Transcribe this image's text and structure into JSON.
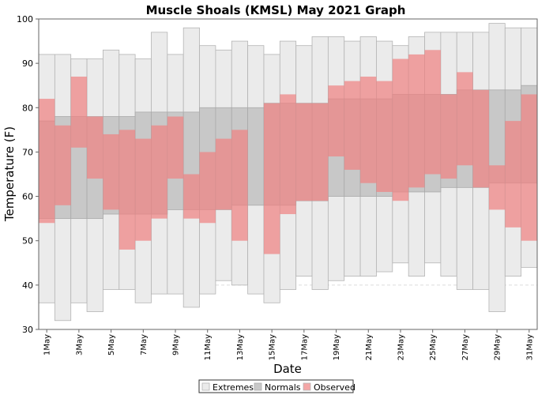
{
  "chart_data": {
    "type": "bar",
    "title": "Muscle Shoals (KMSL) May 2021 Graph",
    "xlabel": "Date",
    "ylabel": "Temperature (F)",
    "ylim": [
      30,
      100
    ],
    "yticks": [
      30,
      40,
      50,
      60,
      70,
      80,
      90,
      100
    ],
    "grid": true,
    "legend_position": "bottom-center",
    "categories": [
      "1May",
      "2May",
      "3May",
      "4May",
      "5May",
      "6May",
      "7May",
      "8May",
      "9May",
      "10May",
      "11May",
      "12May",
      "13May",
      "14May",
      "15May",
      "16May",
      "17May",
      "18May",
      "19May",
      "20May",
      "21May",
      "22May",
      "23May",
      "24May",
      "25May",
      "26May",
      "27May",
      "28May",
      "29May",
      "30May",
      "31May"
    ],
    "xtick_labels": [
      "1May",
      "3May",
      "5May",
      "7May",
      "9May",
      "11May",
      "13May",
      "15May",
      "17May",
      "19May",
      "21May",
      "23May",
      "25May",
      "27May",
      "29May",
      "31May"
    ],
    "series": [
      {
        "name": "Extremes",
        "color": "#ebebeb",
        "stroke": "#b4b4b4",
        "low": [
          36,
          32,
          36,
          34,
          39,
          39,
          36,
          38,
          38,
          35,
          38,
          41,
          40,
          38,
          36,
          39,
          42,
          39,
          41,
          42,
          42,
          43,
          45,
          42,
          45,
          42,
          39,
          39,
          34,
          42,
          44
        ],
        "high": [
          92,
          92,
          91,
          91,
          93,
          92,
          91,
          97,
          92,
          98,
          94,
          93,
          95,
          94,
          92,
          95,
          94,
          96,
          96,
          95,
          96,
          95,
          94,
          96,
          97,
          97,
          97,
          97,
          99,
          98,
          98
        ]
      },
      {
        "name": "Normals",
        "color": "#c8c8c8",
        "stroke": "#aaaaaa",
        "low": [
          55,
          55,
          55,
          55,
          56,
          56,
          56,
          56,
          57,
          57,
          57,
          57,
          58,
          58,
          58,
          58,
          59,
          59,
          60,
          60,
          60,
          60,
          61,
          61,
          61,
          62,
          62,
          62,
          63,
          63,
          63
        ],
        "high": [
          77,
          78,
          78,
          78,
          78,
          78,
          79,
          79,
          79,
          79,
          80,
          80,
          80,
          80,
          81,
          81,
          81,
          81,
          82,
          82,
          82,
          82,
          83,
          83,
          83,
          83,
          84,
          84,
          84,
          84,
          85
        ]
      },
      {
        "name": "Observed",
        "color": "#f08080",
        "opacity": 0.7,
        "low": [
          54,
          58,
          71,
          64,
          57,
          48,
          50,
          55,
          64,
          55,
          54,
          57,
          50,
          58,
          47,
          56,
          59,
          59,
          69,
          66,
          63,
          61,
          59,
          62,
          65,
          64,
          67,
          62,
          57,
          53,
          50
        ],
        "high": [
          82,
          76,
          87,
          78,
          74,
          75,
          73,
          76,
          78,
          65,
          70,
          73,
          75,
          58,
          81,
          83,
          81,
          81,
          85,
          86,
          87,
          86,
          91,
          92,
          93,
          83,
          88,
          84,
          67,
          77,
          83
        ]
      }
    ]
  }
}
